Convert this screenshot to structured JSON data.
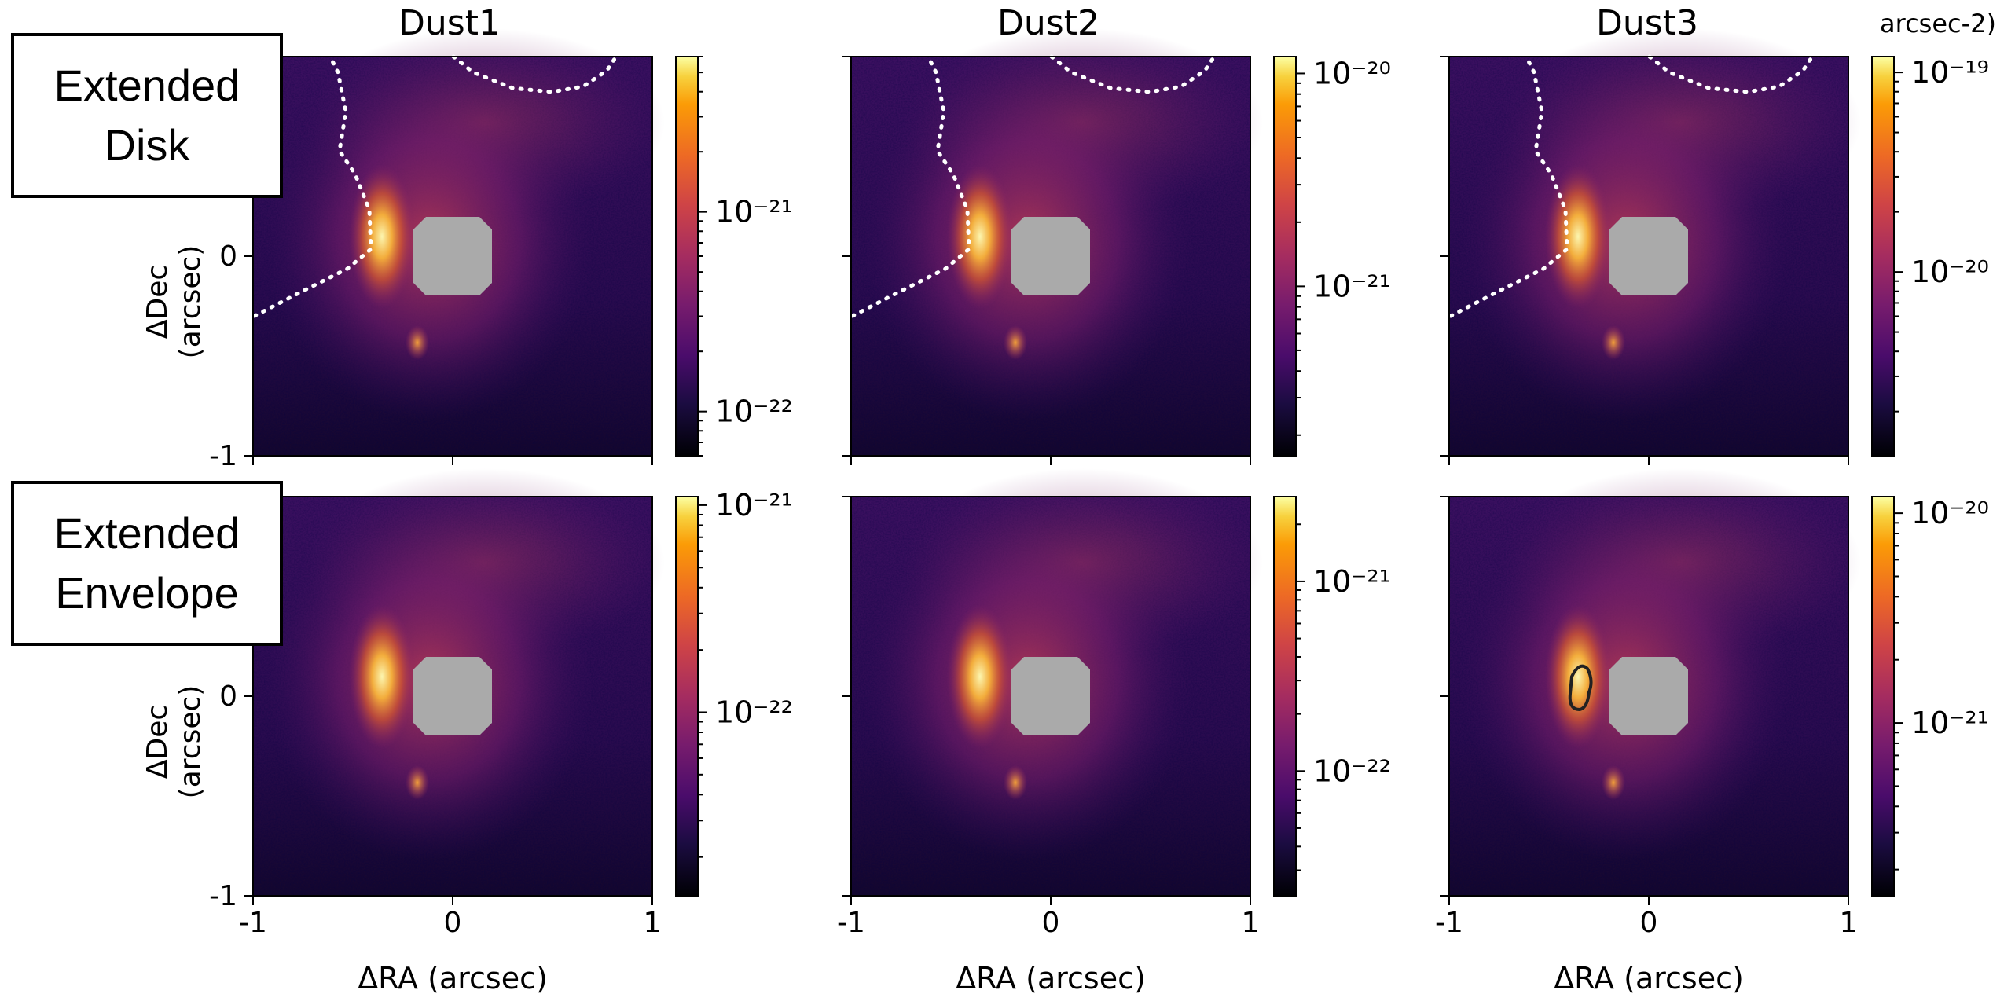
{
  "chart_data": {
    "type": "heatmap",
    "column_titles": [
      "Dust1",
      "Dust2",
      "Dust3"
    ],
    "row_labels": [
      {
        "line1": "Extended",
        "line2": "Disk"
      },
      {
        "line1": "Extended",
        "line2": "Envelope"
      }
    ],
    "xlabel": "ΔRA (arcsec)",
    "ylabel_line1": "ΔDec",
    "ylabel_line2": "(arcsec)",
    "xlim": [
      -1,
      1
    ],
    "ylim": [
      -1,
      1
    ],
    "x_ticks": [
      -1,
      0,
      1
    ],
    "y_ticks": [
      -1,
      0
    ],
    "colormap": "inferno",
    "colorbar_scale": "log",
    "colorbar_unit_label": "arcsec-2)",
    "mask_color": "#aaaaaa",
    "panels": [
      {
        "row": 0,
        "col": 0,
        "cbar_min": 6e-23,
        "cbar_max": 6e-21,
        "cbar_labels": [
          {
            "value": 1e-21,
            "text": "10⁻²¹"
          },
          {
            "value": 1e-22,
            "text": "10⁻²²"
          }
        ],
        "dotted_boundary": true,
        "contour": false
      },
      {
        "row": 0,
        "col": 1,
        "cbar_min": 1.6e-22,
        "cbar_max": 1.2e-20,
        "cbar_labels": [
          {
            "value": 1e-20,
            "text": "10⁻²⁰"
          },
          {
            "value": 1e-21,
            "text": "10⁻²¹"
          }
        ],
        "dotted_boundary": true,
        "contour": false
      },
      {
        "row": 0,
        "col": 2,
        "cbar_min": 1.2e-21,
        "cbar_max": 1.2e-19,
        "cbar_labels": [
          {
            "value": 1e-19,
            "text": "10⁻¹⁹"
          },
          {
            "value": 1e-20,
            "text": "10⁻²⁰"
          }
        ],
        "dotted_boundary": true,
        "contour": false
      },
      {
        "row": 1,
        "col": 0,
        "cbar_min": 1.3e-23,
        "cbar_max": 1.1e-21,
        "cbar_labels": [
          {
            "value": 1e-21,
            "text": "10⁻²¹"
          },
          {
            "value": 1e-22,
            "text": "10⁻²²"
          }
        ],
        "dotted_boundary": false,
        "contour": false
      },
      {
        "row": 1,
        "col": 1,
        "cbar_min": 2.2e-23,
        "cbar_max": 2.8e-21,
        "cbar_labels": [
          {
            "value": 1e-21,
            "text": "10⁻²¹"
          },
          {
            "value": 1e-22,
            "text": "10⁻²²"
          }
        ],
        "dotted_boundary": false,
        "contour": false
      },
      {
        "row": 1,
        "col": 2,
        "cbar_min": 1.5e-22,
        "cbar_max": 1.2e-20,
        "cbar_labels": [
          {
            "value": 1e-20,
            "text": "10⁻²⁰"
          },
          {
            "value": 1e-21,
            "text": "10⁻²¹"
          }
        ],
        "dotted_boundary": false,
        "contour": true
      }
    ]
  }
}
